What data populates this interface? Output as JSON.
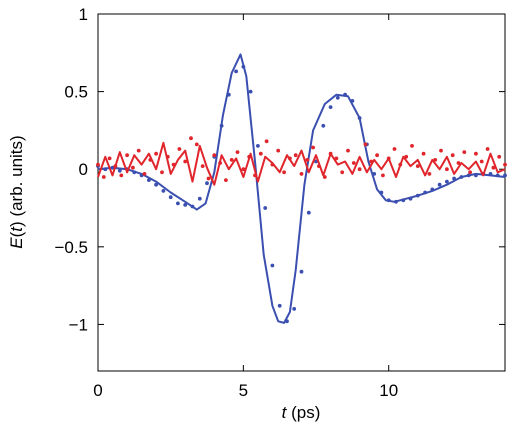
{
  "chart_data": {
    "type": "scatter",
    "title": "",
    "xlabel": "t (ps)",
    "xlabel_parts": {
      "var": "t",
      "unit": " (ps)"
    },
    "ylabel": "E(t) (arb. units)",
    "ylabel_parts": {
      "var": "E",
      "arg": "(",
      "argvar": "t",
      "close": ")",
      "unit": " (arb. units)"
    },
    "xlim": [
      0,
      14
    ],
    "ylim": [
      -1.3,
      1
    ],
    "xticks": [
      0,
      5,
      10
    ],
    "xtick_labels": [
      "0",
      "5",
      "10"
    ],
    "yticks": [
      -1,
      -0.5,
      0,
      0.5,
      1
    ],
    "ytick_labels": [
      "−1",
      "−0.5",
      "0",
      "0.5",
      "1"
    ],
    "grid": false,
    "legend": false,
    "colors": {
      "blue": "#3a4fb0",
      "red": "#e0262c"
    },
    "series": [
      {
        "style": "line",
        "color": "#3a4fb0",
        "x": [
          0,
          0.5,
          1.0,
          1.5,
          2.0,
          2.5,
          3.0,
          3.4,
          3.7,
          4.0,
          4.3,
          4.6,
          4.9,
          5.1,
          5.4,
          5.7,
          6.0,
          6.2,
          6.4,
          6.6,
          6.8,
          7.1,
          7.4,
          7.8,
          8.2,
          8.6,
          9.0,
          9.3,
          9.6,
          9.9,
          10.2,
          10.6,
          11.0,
          11.5,
          12.0,
          12.5,
          13.0,
          13.5,
          14.0
        ],
        "y": [
          0.0,
          0.01,
          0.0,
          -0.03,
          -0.08,
          -0.15,
          -0.21,
          -0.26,
          -0.22,
          -0.02,
          0.35,
          0.62,
          0.74,
          0.6,
          0.05,
          -0.55,
          -0.88,
          -0.98,
          -0.99,
          -0.92,
          -0.65,
          -0.1,
          0.25,
          0.42,
          0.48,
          0.47,
          0.33,
          0.05,
          -0.13,
          -0.2,
          -0.21,
          -0.19,
          -0.17,
          -0.14,
          -0.1,
          -0.05,
          -0.03,
          -0.04,
          -0.05
        ]
      },
      {
        "style": "dots",
        "color": "#3a4fb0",
        "x": [
          0,
          0.25,
          0.5,
          0.75,
          1.0,
          1.25,
          1.5,
          1.75,
          2.0,
          2.25,
          2.5,
          2.75,
          3.0,
          3.25,
          3.5,
          3.75,
          4.0,
          4.25,
          4.5,
          4.75,
          5.0,
          5.25,
          5.5,
          5.75,
          6.0,
          6.25,
          6.5,
          6.75,
          7.0,
          7.25,
          7.5,
          7.75,
          8.0,
          8.25,
          8.5,
          8.75,
          9.0,
          9.25,
          9.5,
          9.75,
          10.0,
          10.25,
          10.5,
          10.75,
          11.0,
          11.25,
          11.5,
          11.75,
          12.0,
          12.25,
          12.5,
          12.75,
          13.0,
          13.25,
          13.5,
          13.75,
          14.0
        ],
        "y": [
          0.02,
          0.0,
          0.01,
          -0.01,
          0.0,
          -0.02,
          -0.04,
          -0.07,
          -0.1,
          -0.14,
          -0.18,
          -0.22,
          -0.23,
          -0.24,
          -0.19,
          -0.09,
          0.08,
          0.28,
          0.48,
          0.63,
          0.66,
          0.5,
          0.15,
          -0.25,
          -0.62,
          -0.88,
          -0.98,
          -0.9,
          -0.66,
          -0.28,
          0.05,
          0.28,
          0.4,
          0.46,
          0.48,
          0.44,
          0.33,
          0.16,
          -0.03,
          -0.15,
          -0.2,
          -0.21,
          -0.2,
          -0.19,
          -0.17,
          -0.15,
          -0.13,
          -0.1,
          -0.08,
          -0.06,
          -0.05,
          -0.04,
          -0.04,
          -0.03,
          -0.03,
          -0.04,
          -0.04
        ]
      },
      {
        "style": "line",
        "color": "#e0262c",
        "x": [
          0,
          0.25,
          0.5,
          0.75,
          1.0,
          1.25,
          1.5,
          1.75,
          2.0,
          2.25,
          2.5,
          2.75,
          3.0,
          3.25,
          3.5,
          3.75,
          4.0,
          4.25,
          4.5,
          4.75,
          5.0,
          5.25,
          5.5,
          5.75,
          6.0,
          6.25,
          6.5,
          6.75,
          7.0,
          7.25,
          7.5,
          7.75,
          8.0,
          8.25,
          8.5,
          8.75,
          9.0,
          9.25,
          9.5,
          9.75,
          10.0,
          10.25,
          10.5,
          10.75,
          11.0,
          11.25,
          11.5,
          11.75,
          12.0,
          12.25,
          12.5,
          12.75,
          13.0,
          13.25,
          13.5,
          13.75,
          14.0
        ],
        "y": [
          -0.05,
          0.08,
          -0.04,
          0.11,
          -0.02,
          0.09,
          0.03,
          0.1,
          0.0,
          0.17,
          -0.03,
          0.06,
          0.12,
          -0.08,
          0.15,
          0.01,
          -0.1,
          0.09,
          0.0,
          0.07,
          -0.05,
          0.1,
          -0.08,
          0.08,
          0.04,
          -0.02,
          0.09,
          0.02,
          0.12,
          -0.02,
          0.09,
          -0.04,
          0.1,
          0.03,
          0.05,
          -0.03,
          0.08,
          -0.02,
          0.06,
          0.0,
          0.07,
          -0.05,
          0.08,
          0.02,
          0.06,
          -0.04,
          0.06,
          0.0,
          0.08,
          -0.03,
          0.04,
          0.0,
          0.05,
          -0.04,
          0.1,
          -0.02,
          0.0
        ]
      },
      {
        "style": "dots",
        "color": "#e0262c",
        "x": [
          0,
          0.2,
          0.4,
          0.6,
          0.8,
          1.0,
          1.2,
          1.4,
          1.6,
          1.8,
          2.0,
          2.2,
          2.4,
          2.6,
          2.8,
          3.0,
          3.2,
          3.4,
          3.6,
          3.8,
          4.0,
          4.2,
          4.4,
          4.6,
          4.8,
          5.0,
          5.2,
          5.4,
          5.6,
          5.8,
          6.0,
          6.2,
          6.4,
          6.6,
          6.8,
          7.0,
          7.2,
          7.4,
          7.6,
          7.8,
          8.0,
          8.2,
          8.4,
          8.6,
          8.8,
          9.0,
          9.2,
          9.4,
          9.6,
          9.8,
          10.0,
          10.2,
          10.4,
          10.6,
          10.8,
          11.0,
          11.2,
          11.4,
          11.6,
          11.8,
          12.0,
          12.2,
          12.4,
          12.6,
          12.8,
          13.0,
          13.2,
          13.4,
          13.6,
          13.8,
          14.0
        ],
        "y": [
          0.03,
          -0.05,
          0.07,
          0.02,
          -0.04,
          0.09,
          0.01,
          0.12,
          -0.03,
          0.06,
          0.1,
          -0.02,
          0.08,
          0.03,
          0.13,
          0.05,
          0.2,
          0.16,
          0.02,
          -0.06,
          0.09,
          0.04,
          -0.07,
          0.06,
          0.11,
          0.0,
          0.08,
          -0.04,
          0.1,
          0.18,
          0.03,
          0.12,
          -0.02,
          0.07,
          0.09,
          -0.03,
          0.06,
          0.14,
          0.02,
          -0.05,
          0.1,
          0.07,
          -0.02,
          0.12,
          0.04,
          0.0,
          0.16,
          0.05,
          0.09,
          -0.04,
          0.07,
          0.13,
          0.03,
          0.08,
          0.15,
          0.02,
          0.1,
          -0.03,
          0.06,
          0.12,
          0.0,
          0.09,
          0.04,
          0.11,
          -0.02,
          0.1,
          0.05,
          0.13,
          0.01,
          0.08,
          0.03
        ]
      }
    ]
  }
}
